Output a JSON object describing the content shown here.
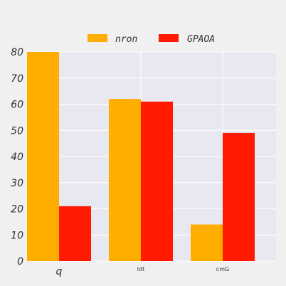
{
  "chart_data": {
    "type": "bar",
    "categories": [
      "q",
      "ldt",
      "cmG"
    ],
    "series": [
      {
        "name": "nron",
        "color": "#FFAE00",
        "values": [
          80,
          62,
          14
        ]
      },
      {
        "name": "GPAOA",
        "color": "#FF1A00",
        "values": [
          21,
          61,
          49
        ]
      }
    ],
    "yticks": [
      0,
      10,
      20,
      30,
      40,
      50,
      60,
      70,
      80
    ],
    "ylim": [
      0,
      80
    ],
    "grid": true,
    "legend_position": "top-center",
    "title": "",
    "xlabel": "",
    "ylabel": ""
  }
}
